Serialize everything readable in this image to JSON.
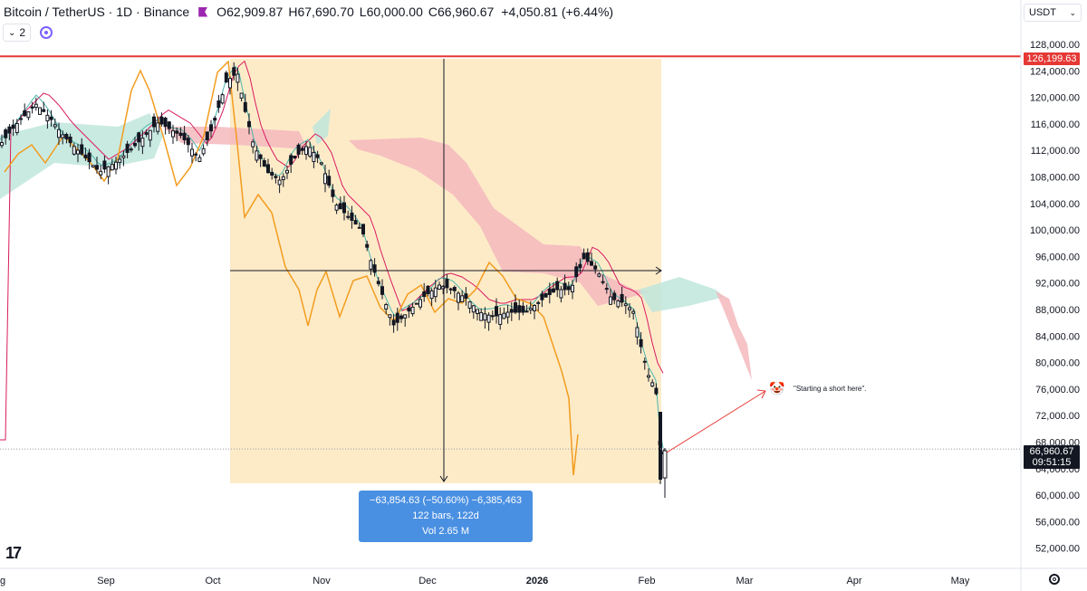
{
  "header": {
    "symbol": "Bitcoin / TetherUS · 1D · Binance",
    "open_label": "O",
    "open": "62,909.87",
    "high_label": "H",
    "high": "67,690.70",
    "low_label": "L",
    "low": "60,000.00",
    "close_label": "C",
    "close": "66,960.67",
    "change": "+4,050.81 (+6.44%)",
    "interval_control": "2",
    "currency": "USDT",
    "flag_color": "#9c27b0"
  },
  "measure": {
    "line1": "−63,854.63 (−50.60%) −6,385,463",
    "line2": "122 bars, 122d",
    "line3": "Vol 2.65 M"
  },
  "annotation": {
    "text": "\"Starting a short here\".",
    "icon": "clown-face-icon"
  },
  "price_labels": {
    "resistance": "126,199.63",
    "last": "66,960.67",
    "countdown": "09:51:15"
  },
  "logo": "17",
  "chart_data": {
    "type": "candlestick",
    "y_axis": {
      "ticks": [
        "128,000.00",
        "124,000.00",
        "120,000.00",
        "116,000.00",
        "112,000.00",
        "108,000.00",
        "104,000.00",
        "100,000.00",
        "96,000.00",
        "92,000.00",
        "88,000.00",
        "84,000.00",
        "80,000.00",
        "76,000.00",
        "72,000.00",
        "68,000.00",
        "64,000.00",
        "60,000.00",
        "56,000.00",
        "52,000.00"
      ],
      "range": [
        50000,
        130000
      ]
    },
    "x_axis": {
      "ticks": [
        "g",
        "Sep",
        "Oct",
        "Nov",
        "Dec",
        "2026",
        "Feb",
        "Mar",
        "Apr",
        "May"
      ],
      "tick_bold": [
        false,
        false,
        false,
        false,
        false,
        true,
        false,
        false,
        false,
        false
      ]
    },
    "resistance_level": 126199.63,
    "last_price": 66960.67,
    "measure_range": {
      "from_price": 126199.63,
      "to_price": 62345,
      "bars": 122
    },
    "series_hint": "BTC daily price ~Aug 2025 – Feb 2026 with Ichimoku cloud, baseline/conversion lines and lagging span",
    "colors": {
      "candle": "#131722",
      "resistance": "#e53935",
      "measure_bg": "#fdebc8",
      "cloud_bear": "#f4b8bd",
      "cloud_bull": "#bfe6dc",
      "lagging": "#f39c1f",
      "conversion": "#4db6ac",
      "base": "#d81b60",
      "arrow": "#e53935",
      "measure_box": "#4a90e2"
    }
  }
}
